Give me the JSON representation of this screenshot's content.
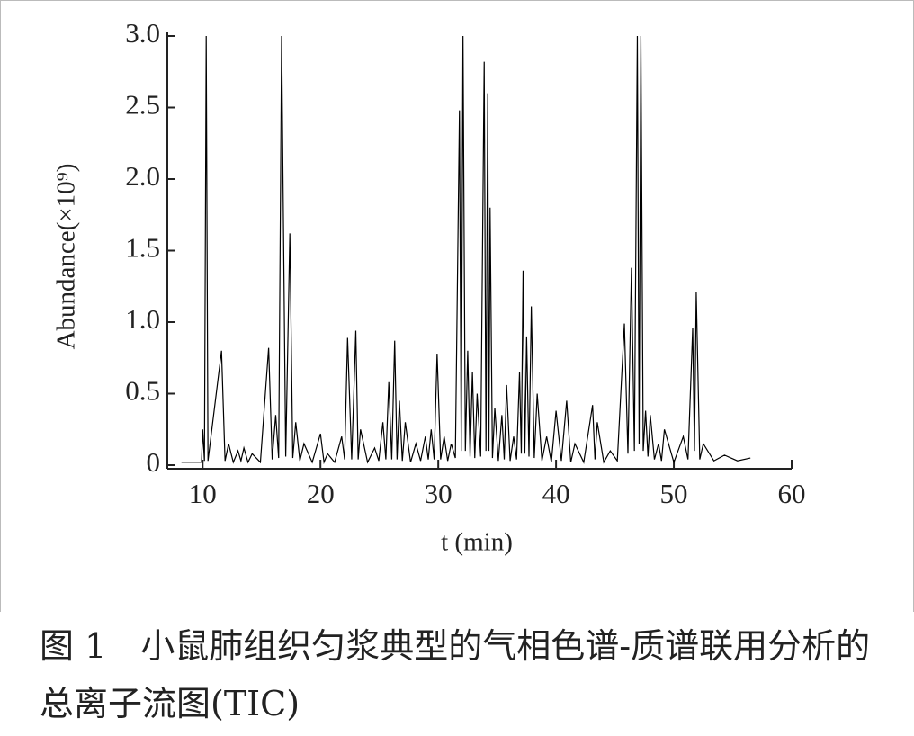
{
  "chart_data": {
    "type": "line",
    "ylabel": "Abundance(×10⁹)",
    "xlabel": "t (min)",
    "caption": "图 1　小鼠肺组织匀浆典型的气相色谱-质谱联用分析的总离子流图(TIC)",
    "color": "#000000",
    "xlim": [
      7,
      60
    ],
    "xticks": [
      10,
      20,
      30,
      40,
      50,
      60
    ],
    "ylim": [
      0,
      3.0
    ],
    "yticks": [
      0,
      0.5,
      {
        "value": 1,
        "label": "1.0"
      },
      1.5,
      {
        "value": 2,
        "label": "2.0"
      },
      2.5,
      {
        "value": 3,
        "label": "3.0"
      }
    ],
    "x": [
      8.2,
      9.9,
      10.0,
      10.15,
      10.3,
      10.45,
      11.6,
      11.9,
      12.2,
      12.6,
      13.0,
      13.25,
      13.5,
      13.85,
      14.2,
      14.9,
      15.6,
      15.9,
      16.2,
      16.45,
      16.7,
      17.05,
      17.4,
      17.65,
      17.9,
      18.25,
      18.6,
      19.3,
      20.0,
      20.3,
      20.6,
      21.2,
      21.8,
      22.05,
      22.3,
      22.65,
      23.0,
      23.2,
      23.4,
      24.0,
      24.6,
      24.95,
      25.3,
      25.55,
      25.8,
      26.05,
      26.3,
      26.5,
      26.7,
      26.95,
      27.2,
      27.65,
      28.1,
      28.5,
      28.9,
      29.15,
      29.4,
      29.65,
      29.9,
      30.2,
      30.5,
      30.8,
      31.1,
      31.45,
      31.8,
      31.95,
      32.1,
      32.3,
      32.5,
      32.7,
      32.9,
      33.1,
      33.3,
      33.6,
      33.9,
      34.05,
      34.2,
      34.3,
      34.4,
      34.6,
      34.8,
      35.1,
      35.4,
      35.6,
      35.8,
      36.1,
      36.4,
      36.65,
      36.9,
      37.05,
      37.2,
      37.35,
      37.5,
      37.7,
      37.9,
      38.15,
      38.4,
      38.8,
      39.2,
      39.6,
      40.0,
      40.45,
      40.9,
      41.25,
      41.6,
      42.35,
      43.1,
      43.3,
      43.5,
      44.05,
      44.6,
      45.2,
      45.8,
      46.1,
      46.4,
      46.65,
      46.9,
      47.05,
      47.2,
      47.4,
      47.6,
      47.8,
      48.0,
      48.35,
      48.7,
      48.95,
      49.2,
      50.0,
      50.8,
      51.2,
      51.6,
      51.75,
      51.9,
      52.2,
      52.5,
      53.4,
      54.3,
      55.4,
      56.5
    ],
    "values": [
      0.02,
      0.02,
      0.25,
      0.03,
      3.0,
      0.03,
      0.8,
      0.03,
      0.15,
      0.02,
      0.1,
      0.03,
      0.12,
      0.02,
      0.08,
      0.02,
      0.82,
      0.04,
      0.35,
      0.05,
      3.0,
      0.06,
      1.62,
      0.05,
      0.3,
      0.03,
      0.15,
      0.02,
      0.22,
      0.02,
      0.08,
      0.02,
      0.2,
      0.04,
      0.89,
      0.04,
      0.94,
      0.04,
      0.25,
      0.02,
      0.12,
      0.03,
      0.3,
      0.04,
      0.58,
      0.04,
      0.87,
      0.04,
      0.45,
      0.03,
      0.3,
      0.02,
      0.15,
      0.03,
      0.2,
      0.04,
      0.25,
      0.04,
      0.78,
      0.04,
      0.2,
      0.03,
      0.15,
      0.05,
      2.48,
      0.1,
      3.0,
      0.1,
      0.8,
      0.06,
      0.65,
      0.05,
      0.5,
      0.06,
      2.82,
      0.1,
      2.6,
      0.1,
      1.8,
      0.05,
      0.4,
      0.03,
      0.35,
      0.04,
      0.56,
      0.03,
      0.2,
      0.04,
      0.65,
      0.08,
      1.36,
      0.08,
      0.9,
      0.06,
      1.11,
      0.05,
      0.5,
      0.03,
      0.2,
      0.02,
      0.38,
      0.03,
      0.45,
      0.02,
      0.15,
      0.02,
      0.42,
      0.04,
      0.3,
      0.02,
      0.1,
      0.03,
      0.99,
      0.08,
      1.38,
      0.1,
      3.0,
      0.15,
      3.0,
      0.1,
      0.38,
      0.06,
      0.35,
      0.04,
      0.15,
      0.03,
      0.25,
      0.02,
      0.2,
      0.04,
      0.96,
      0.1,
      1.21,
      0.04,
      0.15,
      0.03,
      0.07,
      0.03,
      0.05
    ]
  }
}
